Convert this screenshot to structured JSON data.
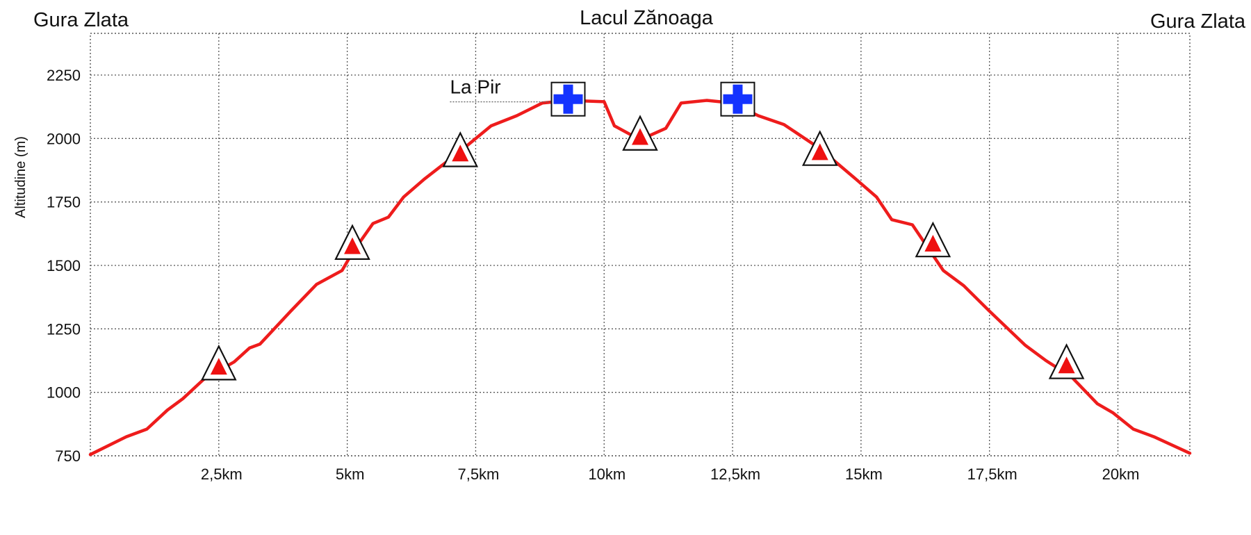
{
  "header": {
    "left_label": "Gura Zlata",
    "center_label": "Lacul Zănoaga",
    "right_label": "Gura Zlata"
  },
  "chart_data": {
    "type": "line",
    "title": "",
    "xlabel": "",
    "ylabel": "Altitudine (m)",
    "xlim": [
      0,
      21.4
    ],
    "ylim": [
      750,
      2300
    ],
    "grid": true,
    "x_ticks": [
      2.5,
      5,
      7.5,
      10,
      12.5,
      15,
      17.5,
      20
    ],
    "x_tick_labels": [
      "2,5km",
      "5km",
      "7,5km",
      "10km",
      "12,5km",
      "15km",
      "17,5km",
      "20km"
    ],
    "y_ticks": [
      750,
      1000,
      1250,
      1500,
      1750,
      2000,
      2250
    ],
    "y_tick_labels": [
      "750",
      "1000",
      "1250",
      "1500",
      "1750",
      "2000",
      "2250"
    ],
    "series": [
      {
        "name": "",
        "color": "#ee1c1c",
        "points": [
          [
            0,
            755
          ],
          [
            0.7,
            825
          ],
          [
            1.1,
            855
          ],
          [
            1.5,
            930
          ],
          [
            1.8,
            975
          ],
          [
            2.2,
            1050
          ],
          [
            2.8,
            1120
          ],
          [
            3.1,
            1175
          ],
          [
            3.3,
            1190
          ],
          [
            3.9,
            1320
          ],
          [
            4.4,
            1425
          ],
          [
            4.9,
            1480
          ],
          [
            5.1,
            1550
          ],
          [
            5.5,
            1665
          ],
          [
            5.8,
            1690
          ],
          [
            6.1,
            1770
          ],
          [
            6.5,
            1840
          ],
          [
            7.2,
            1950
          ],
          [
            7.8,
            2050
          ],
          [
            8.3,
            2090
          ],
          [
            8.8,
            2140
          ],
          [
            9.3,
            2150
          ],
          [
            10.0,
            2145
          ],
          [
            10.2,
            2050
          ],
          [
            10.7,
            1995
          ],
          [
            11.2,
            2040
          ],
          [
            11.5,
            2140
          ],
          [
            12.0,
            2150
          ],
          [
            12.5,
            2140
          ],
          [
            13.0,
            2090
          ],
          [
            13.5,
            2055
          ],
          [
            14.2,
            1960
          ],
          [
            14.9,
            1840
          ],
          [
            15.3,
            1770
          ],
          [
            15.6,
            1680
          ],
          [
            16.0,
            1660
          ],
          [
            16.6,
            1480
          ],
          [
            17.0,
            1420
          ],
          [
            17.5,
            1320
          ],
          [
            18.2,
            1185
          ],
          [
            18.6,
            1125
          ],
          [
            19.1,
            1060
          ],
          [
            19.6,
            955
          ],
          [
            19.9,
            920
          ],
          [
            20.3,
            855
          ],
          [
            20.7,
            825
          ],
          [
            21.4,
            760
          ]
        ]
      }
    ],
    "markers": [
      {
        "kind": "peak-triangle",
        "x": 2.5,
        "y": 1100
      },
      {
        "kind": "peak-triangle",
        "x": 5.1,
        "y": 1575
      },
      {
        "kind": "peak-triangle",
        "x": 7.2,
        "y": 1940
      },
      {
        "kind": "peak-triangle",
        "x": 10.7,
        "y": 2005
      },
      {
        "kind": "peak-triangle",
        "x": 14.2,
        "y": 1945
      },
      {
        "kind": "peak-triangle",
        "x": 16.4,
        "y": 1585
      },
      {
        "kind": "peak-triangle",
        "x": 19.0,
        "y": 1105
      },
      {
        "kind": "cross",
        "x": 9.3,
        "y": 2155
      },
      {
        "kind": "cross",
        "x": 12.6,
        "y": 2155
      }
    ],
    "annotations": [
      {
        "text": "La Pir",
        "x": 7.0,
        "y": 2150
      }
    ]
  }
}
